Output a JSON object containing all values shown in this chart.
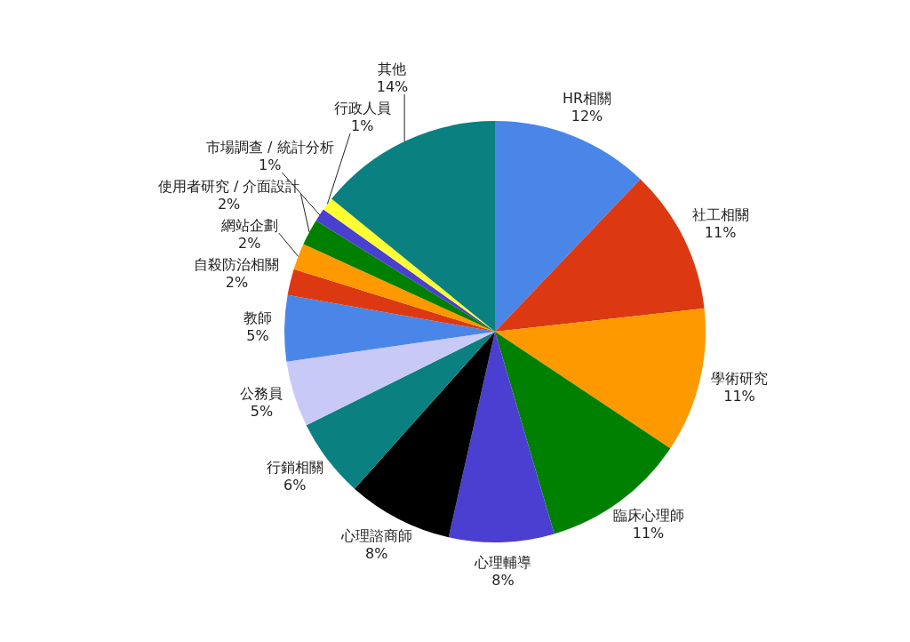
{
  "chart_data": {
    "type": "pie",
    "categories": [
      "HR相關",
      "社工相關",
      "學術研究",
      "臨床心理師",
      "心理輔導",
      "心理諮商師",
      "行銷相關",
      "公務員",
      "教師",
      "自殺防治相關",
      "網站企劃",
      "使用者研究 / 介面設計",
      "市場調查 / 統計分析",
      "行政人員",
      "其他"
    ],
    "values": [
      12,
      11,
      11,
      11,
      8,
      8,
      6,
      5,
      5,
      2,
      2,
      2,
      1,
      1,
      14
    ],
    "colors": [
      "#4a86e8",
      "#dc3912",
      "#ff9900",
      "#008000",
      "#4b3fd1",
      "#000000",
      "#0b8080",
      "#c9c9f8",
      "#4a86e8",
      "#dc3912",
      "#ff9900",
      "#008000",
      "#4b3fd1",
      "#ffff33",
      "#0b8080"
    ],
    "value_labels": [
      "12%",
      "11%",
      "11%",
      "11%",
      "8%",
      "8%",
      "6%",
      "5%",
      "5%",
      "2%",
      "2%",
      "2%",
      "1%",
      "1%",
      "14%"
    ]
  }
}
